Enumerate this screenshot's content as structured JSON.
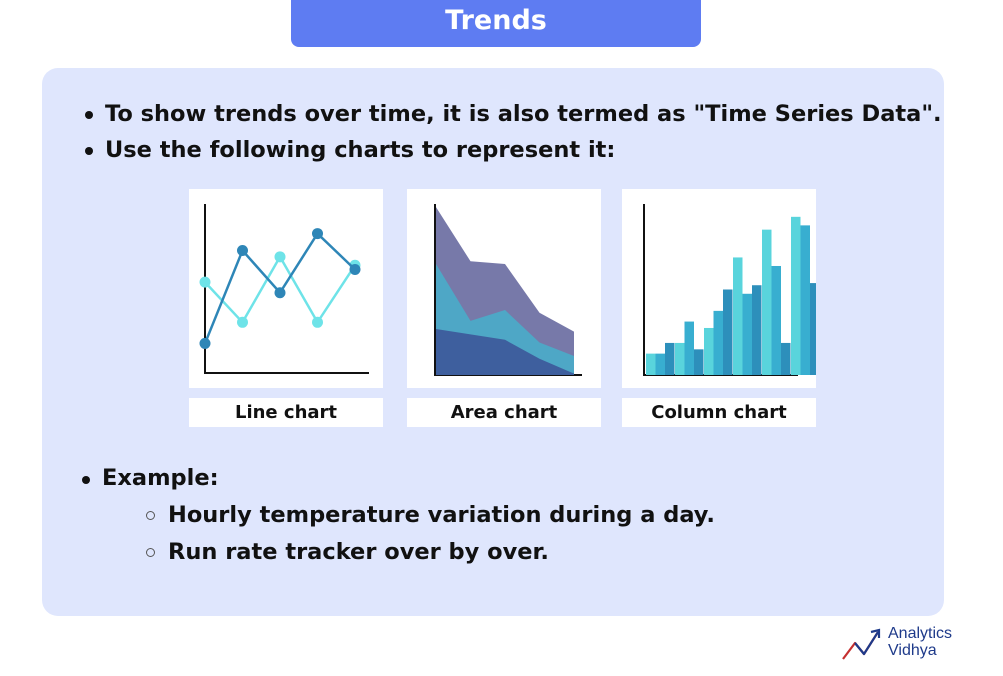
{
  "title": "Trends",
  "bullets": [
    "To show trends over time, it is also termed as \"Time Series Data\".",
    "Use the following charts to represent it:"
  ],
  "charts": [
    {
      "label": "Line chart",
      "type": "line",
      "series": [
        {
          "values": [
            2.15,
            1.2,
            2.75,
            1.2,
            2.55
          ],
          "color": "#6ee3e8"
        },
        {
          "values": [
            0.7,
            2.9,
            1.9,
            3.3,
            2.45
          ],
          "color": "#2e86b7"
        }
      ]
    },
    {
      "label": "Area chart",
      "type": "area",
      "layers": [
        {
          "values": [
            6.2,
            4.2,
            4.1,
            2.3,
            1.6
          ],
          "color": "#7779a9"
        },
        {
          "values": [
            4.1,
            2.0,
            2.4,
            1.2,
            0.7
          ],
          "color": "#4ea7c6"
        },
        {
          "values": [
            1.7,
            1.5,
            1.3,
            0.6,
            0.05
          ],
          "color": "#3e5f9e"
        }
      ]
    },
    {
      "label": "Column chart",
      "type": "column",
      "colors": [
        "#59d4dc",
        "#38aed0",
        "#2d8fbb"
      ],
      "groups": [
        [
          1.0,
          1.0,
          1.5
        ],
        [
          1.5,
          2.5,
          1.2
        ],
        [
          2.2,
          3.0,
          4.0
        ],
        [
          5.5,
          3.8,
          4.2
        ],
        [
          6.8,
          5.1,
          1.5
        ],
        [
          7.4,
          7.0,
          4.3
        ]
      ]
    }
  ],
  "example": {
    "heading": "Example:",
    "items": [
      "Hourly temperature variation during a day.",
      "Run rate tracker over by over."
    ]
  },
  "logo": {
    "line1": "Analytics",
    "line2": "Vidhya"
  }
}
